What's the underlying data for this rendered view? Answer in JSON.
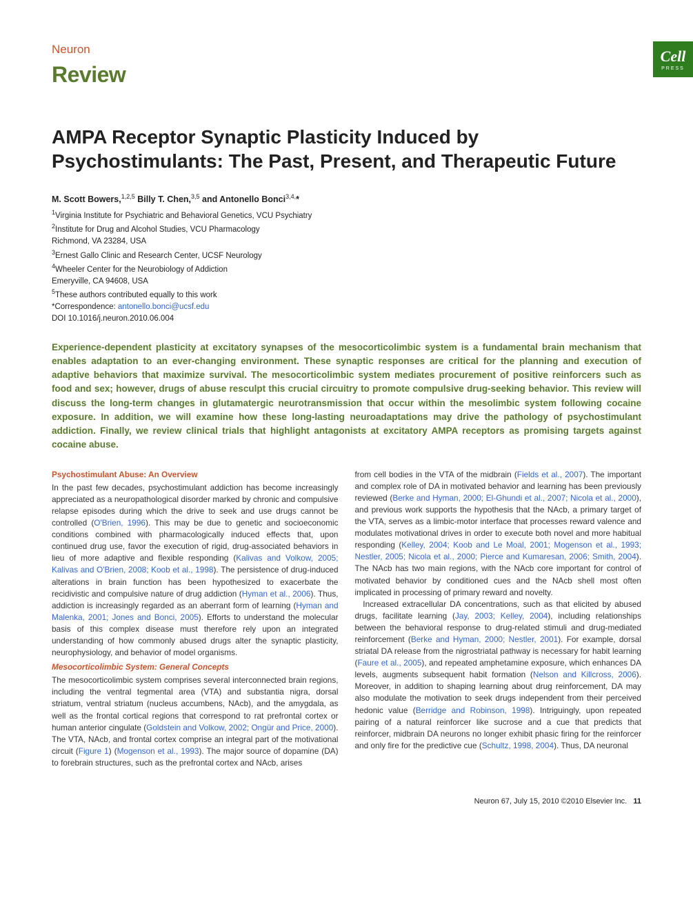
{
  "header": {
    "journal": "Neuron",
    "article_type": "Review",
    "badge_cell": "Cell",
    "badge_press": "PRESS"
  },
  "title": "AMPA Receptor Synaptic Plasticity Induced by Psychostimulants: The Past, Present, and Therapeutic Future",
  "authors_html": "M. Scott Bowers,<sup>1,2,5</sup> Billy T. Chen,<sup>3,5</sup> and Antonello Bonci<sup>3,4,*</sup>",
  "affiliations": {
    "a1": "Virginia Institute for Psychiatric and Behavioral Genetics, VCU Psychiatry",
    "a2": "Institute for Drug and Alcohol Studies, VCU Pharmacology",
    "loc1": "Richmond, VA 23284, USA",
    "a3": "Ernest Gallo Clinic and Research Center, UCSF Neurology",
    "a4": "Wheeler Center for the Neurobiology of Addiction",
    "loc2": "Emeryville, CA 94608, USA",
    "a5": "These authors contributed equally to this work",
    "corr_label": "*Correspondence: ",
    "corr_email": "antonello.bonci@ucsf.edu",
    "doi": "DOI 10.1016/j.neuron.2010.06.004"
  },
  "abstract": "Experience-dependent plasticity at excitatory synapses of the mesocorticolimbic system is a fundamental brain mechanism that enables adaptation to an ever-changing environment. These synaptic responses are critical for the planning and execution of adaptive behaviors that maximize survival. The mesocorticolimbic system mediates procurement of positive reinforcers such as food and sex; however, drugs of abuse resculpt this crucial circuitry to promote compulsive drug-seeking behavior. This review will discuss the long-term changes in glutamatergic neurotransmission that occur within the mesolimbic system following cocaine exposure. In addition, we will examine how these long-lasting neuroadaptations may drive the pathology of psychostimulant addiction. Finally, we review clinical trials that highlight antagonists at excitatory AMPA receptors as promising targets against cocaine abuse.",
  "sections": {
    "s1_heading": "Psychostimulant Abuse: An Overview",
    "s1_p1a": "In the past few decades, psychostimulant addiction has become increasingly appreciated as a neuropathological disorder marked by chronic and compulsive relapse episodes during which the drive to seek and use drugs cannot be controlled (",
    "s1_r1": "O'Brien, 1996",
    "s1_p1b": "). This may be due to genetic and socioeconomic conditions combined with pharmacologically induced effects that, upon continued drug use, favor the execution of rigid, drug-associated behaviors in lieu of more adaptive and flexible responding (",
    "s1_r2": "Kalivas and Volkow, 2005; Kalivas and O'Brien, 2008; Koob et al., 1998",
    "s1_p1c": "). The persistence of drug-induced alterations in brain function has been hypothesized to exacerbate the recidivistic and compulsive nature of drug addiction (",
    "s1_r3": "Hyman et al., 2006",
    "s1_p1d": "). Thus, addiction is increasingly regarded as an aberrant form of learning (",
    "s1_r4": "Hyman and Malenka, 2001; Jones and Bonci, 2005",
    "s1_p1e": "). Efforts to understand the molecular basis of this complex disease must therefore rely upon an integrated understanding of how commonly abused drugs alter the synaptic plasticity, neurophysiology, and behavior of model organisms.",
    "s2_heading": "Mesocorticolimbic System: General Concepts",
    "s2_p1a": "The mesocorticolimbic system comprises several interconnected brain regions, including the ventral tegmental area (VTA) and substantia nigra, dorsal striatum, ventral striatum (nucleus accumbens, NAcb), and the amygdala, as well as the frontal cortical regions that correspond to rat prefrontal cortex or human anterior cingulate (",
    "s2_r1": "Goldstein and Volkow, 2002; Ongür and Price, 2000",
    "s2_p1b": "). The VTA, NAcb, and frontal cortex comprise an integral part of the motivational circuit (",
    "s2_r2": "Figure 1",
    "s2_p1c": ") (",
    "s2_r3": "Mogenson et al., 1993",
    "s2_p1d": "). The major source of dopamine (DA) to forebrain structures, such as the prefrontal cortex and NAcb, arises",
    "col2_p1a": "from cell bodies in the VTA of the midbrain (",
    "col2_r1": "Fields et al., 2007",
    "col2_p1b": "). The important and complex role of DA in motivated behavior and learning has been previously reviewed (",
    "col2_r2": "Berke and Hyman, 2000; El-Ghundi et al., 2007; Nicola et al., 2000",
    "col2_p1c": "), and previous work supports the hypothesis that the NAcb, a primary target of the VTA, serves as a limbic-motor interface that processes reward valence and modulates motivational drives in order to execute both novel and more habitual responding (",
    "col2_r3": "Kelley, 2004; Koob and Le Moal, 2001; Mogenson et al., 1993; Nestler, 2005; Nicola et al., 2000; Pierce and Kumaresan, 2006; Smith, 2004",
    "col2_p1d": "). The NAcb has two main regions, with the NAcb core important for control of motivated behavior by conditioned cues and the NAcb shell most often implicated in processing of primary reward and novelty.",
    "col2_p2a": "Increased extracellular DA concentrations, such as that elicited by abused drugs, facilitate learning (",
    "col2_r4": "Jay, 2003; Kelley, 2004",
    "col2_p2b": "), including relationships between the behavioral response to drug-related stimuli and drug-mediated reinforcement (",
    "col2_r5": "Berke and Hyman, 2000; Nestler, 2001",
    "col2_p2c": "). For example, dorsal striatal DA release from the nigrostriatal pathway is necessary for habit learning (",
    "col2_r6": "Faure et al., 2005",
    "col2_p2d": "), and repeated amphetamine exposure, which enhances DA levels, augments subsequent habit formation (",
    "col2_r7": "Nelson and Killcross, 2006",
    "col2_p2e": "). Moreover, in addition to shaping learning about drug reinforcement, DA may also modulate the motivation to seek drugs independent from their perceived hedonic value (",
    "col2_r8": "Berridge and Robinson, 1998",
    "col2_p2f": "). Intriguingly, upon repeated pairing of a natural reinforcer like sucrose and a cue that predicts that reinforcer, midbrain DA neurons no longer exhibit phasic firing for the reinforcer and only fire for the predictive cue (",
    "col2_r9": "Schultz, 1998, 2004",
    "col2_p2g": "). Thus, DA neuronal"
  },
  "footer": {
    "citation": "Neuron 67, July 15, 2010 ©2010 Elsevier Inc.",
    "page": "11"
  },
  "colors": {
    "orange": "#c8552d",
    "green": "#5a7a2e",
    "dark_green": "#2e7d1e",
    "link": "#3366cc"
  }
}
